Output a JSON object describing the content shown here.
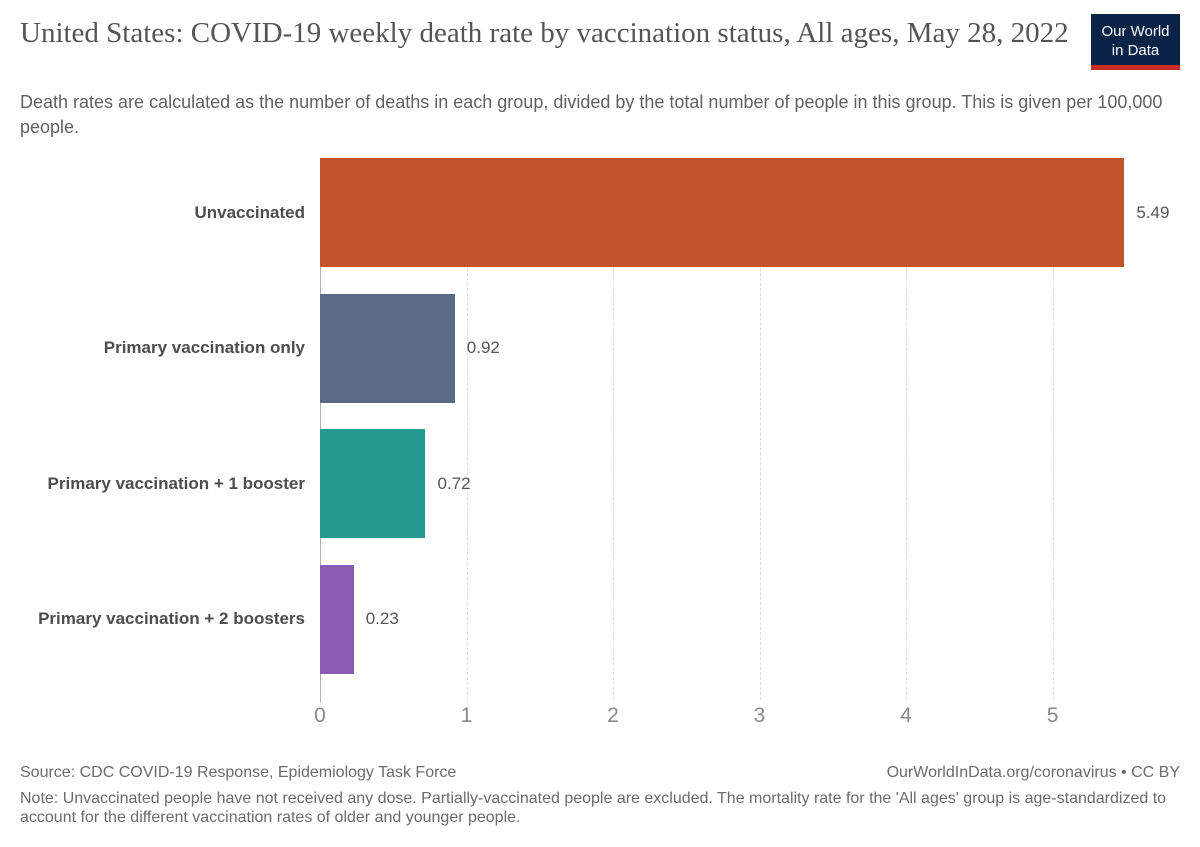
{
  "chart_data": {
    "type": "bar",
    "orientation": "horizontal",
    "title": "United States: COVID-19 weekly death rate by vaccination status, All ages, May 28, 2022",
    "subtitle": "Death rates are calculated as the number of deaths in each group, divided by the total number of people in this group. This is given per 100,000 people.",
    "categories": [
      "Unvaccinated",
      "Primary vaccination only",
      "Primary vaccination + 1 booster",
      "Primary vaccination + 2 boosters"
    ],
    "values": [
      5.49,
      0.92,
      0.72,
      0.23
    ],
    "value_labels": [
      "5.49",
      "0.92",
      "0.72",
      "0.23"
    ],
    "bar_colors": [
      "#c0532b",
      "#5a6a85",
      "#259890",
      "#8a5bb0"
    ],
    "x_ticks": [
      "0",
      "1",
      "2",
      "3",
      "4",
      "5"
    ],
    "xlim": [
      0,
      5.87
    ],
    "xlabel": "",
    "ylabel": "",
    "unit": "deaths per 100,000 people",
    "grid": "vertical-dashed",
    "legend": "none"
  },
  "logo": {
    "line1": "Our World",
    "line2": "in Data",
    "bg_color": "#0a2346",
    "accent_color": "#c72d25"
  },
  "footer": {
    "source": "Source: CDC COVID-19 Response, Epidemiology Task Force",
    "note": "Note: Unvaccinated people have not received any dose. Partially-vaccinated people are excluded. The mortality rate for the 'All ages' group is age-standardized to account for the different vaccination rates of older and younger people.",
    "link": "OurWorldInData.org/coronavirus • CC BY"
  }
}
